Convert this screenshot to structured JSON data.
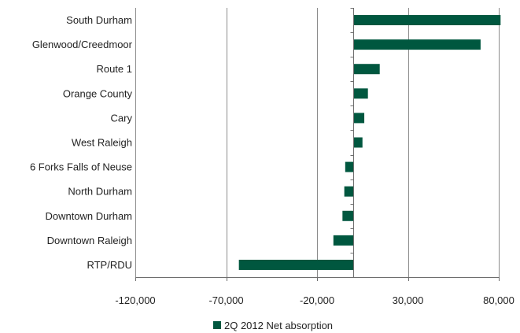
{
  "chart_data": {
    "type": "bar",
    "orientation": "horizontal",
    "categories": [
      "South Durham",
      "Glenwood/Creedmoor",
      "Route 1",
      "Orange County",
      "Cary",
      "West Raleigh",
      "6 Forks Falls of Neuse",
      "North Durham",
      "Downtown Durham",
      "Downtown Raleigh",
      "RTP/RDU"
    ],
    "series": [
      {
        "name": "2Q 2012 Net absorption",
        "color": "#00573f",
        "values": [
          81000,
          70000,
          14500,
          8000,
          6000,
          5000,
          -4500,
          -5000,
          -6000,
          -11000,
          -63000
        ]
      }
    ],
    "xlim": [
      -120000,
      80000
    ],
    "xticks": [
      -120000,
      -70000,
      -20000,
      30000,
      80000
    ],
    "xtick_labels": [
      "-120,000",
      "-70,000",
      "-20,000",
      "30,000",
      "80,000"
    ],
    "grid": "vertical",
    "legend": "bottom-center",
    "title": "",
    "xlabel": "",
    "ylabel": ""
  }
}
